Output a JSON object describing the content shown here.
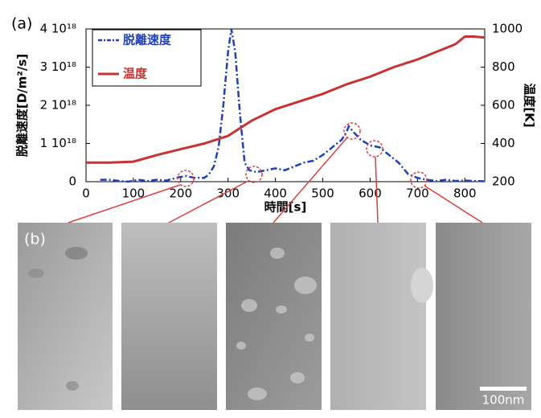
{
  "chart_data": {
    "type": "line",
    "panel_label": "(a)",
    "xlabel": "時間[s]",
    "ylabel": "脱離速度[D/m²/s]",
    "y2label": "温度[K]",
    "xlim": [
      0,
      842
    ],
    "ylim": [
      0,
      4e+18
    ],
    "y2lim": [
      200,
      1000
    ],
    "xticks": [
      0,
      100,
      200,
      300,
      400,
      500,
      600,
      700,
      800
    ],
    "yticks": [
      0,
      {
        "value": 1e+18,
        "label": "1 10¹⁸"
      },
      {
        "value": 2e+18,
        "label": "2 10¹⁸"
      },
      {
        "value": 3e+18,
        "label": "3 10¹⁸"
      },
      {
        "value": 4e+18,
        "label": "4 10¹⁸"
      }
    ],
    "y2ticks": [
      200,
      400,
      600,
      800,
      1000
    ],
    "series": [
      {
        "name": "脱離速度",
        "color": "#1f3fbf",
        "dash": "dash-dot",
        "x": [
          30,
          50,
          70,
          90,
          110,
          130,
          150,
          170,
          190,
          210,
          230,
          250,
          260,
          270,
          280,
          290,
          300,
          307,
          315,
          325,
          335,
          345,
          360,
          380,
          400,
          420,
          440,
          460,
          480,
          500,
          520,
          540,
          550,
          555,
          565,
          580,
          600,
          620,
          640,
          660,
          680,
          700,
          720,
          740,
          760,
          780,
          800,
          820,
          840
        ],
        "values": [
          5e+16,
          5e+16,
          2e+16,
          0,
          5e+16,
          2e+16,
          5e+16,
          3e+16,
          1e+17,
          1.5e+17,
          1e+17,
          1e+17,
          2e+17,
          4e+17,
          9e+17,
          2e+18,
          3.4e+18,
          4e+18,
          3.4e+18,
          1.8e+18,
          5e+17,
          3e+17,
          2.5e+17,
          3e+17,
          3.5e+17,
          3e+17,
          4e+17,
          5e+17,
          5.5e+17,
          7e+17,
          9e+17,
          1.1e+18,
          1.3e+18,
          1.45e+18,
          1.3e+18,
          1.1e+18,
          9.5e+17,
          9e+17,
          7e+17,
          5e+17,
          2e+17,
          1e+17,
          5e+16,
          2e+16,
          5e+16,
          2e+16,
          3e+16,
          2e+16,
          1e+16
        ]
      },
      {
        "name": "温度",
        "color": "#c83232",
        "axis": "y2",
        "x": [
          0,
          50,
          100,
          150,
          200,
          250,
          300,
          350,
          400,
          450,
          500,
          550,
          600,
          650,
          700,
          750,
          780,
          800,
          820,
          842
        ],
        "values": [
          300,
          300,
          305,
          340,
          370,
          400,
          440,
          520,
          580,
          620,
          660,
          710,
          750,
          800,
          840,
          890,
          920,
          960,
          960,
          955
        ]
      }
    ]
  },
  "images": {
    "panel_label": "(b)",
    "scale_bar": "100nm"
  }
}
